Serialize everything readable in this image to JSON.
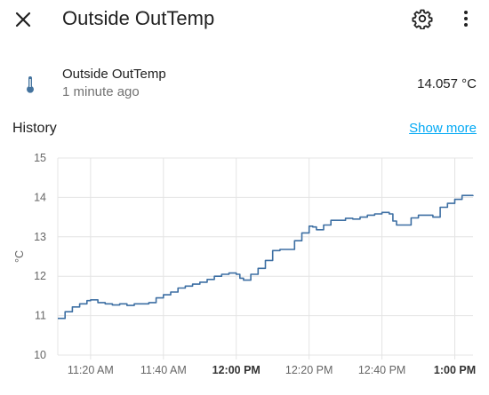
{
  "header": {
    "title": "Outside OutTemp"
  },
  "entity": {
    "name": "Outside OutTemp",
    "last_changed": "1 minute ago",
    "value": "14.057 °C"
  },
  "history": {
    "title": "History",
    "show_more": "Show more"
  },
  "colors": {
    "line": "#3d6fa3",
    "accent": "#03a9f4",
    "icon": "#44739e"
  },
  "chart_data": {
    "type": "line",
    "ylabel": "°C",
    "ylim": [
      10,
      15
    ],
    "yticks": [
      "15",
      "14",
      "13",
      "12",
      "11",
      "10"
    ],
    "xlim": [
      "11:11",
      "13:05"
    ],
    "xticks": [
      {
        "label": "11:20 AM",
        "time": "11:20",
        "bold": false
      },
      {
        "label": "11:40 AM",
        "time": "11:40",
        "bold": false
      },
      {
        "label": "12:00 PM",
        "time": "12:00",
        "bold": true
      },
      {
        "label": "12:20 PM",
        "time": "12:20",
        "bold": false
      },
      {
        "label": "12:40 PM",
        "time": "12:40",
        "bold": false
      },
      {
        "label": "1:00 PM",
        "time": "13:00",
        "bold": true
      }
    ],
    "grid": true,
    "series": [
      {
        "x": [
          "11:11",
          "11:13",
          "11:15",
          "11:17",
          "11:19",
          "11:20",
          "11:22",
          "11:24",
          "11:26",
          "11:28",
          "11:30",
          "11:32",
          "11:34",
          "11:36",
          "11:38",
          "11:40",
          "11:42",
          "11:44",
          "11:46",
          "11:48",
          "11:50",
          "11:52",
          "11:54",
          "11:56",
          "11:58",
          "12:00",
          "12:01",
          "12:02",
          "12:04",
          "12:06",
          "12:08",
          "12:10",
          "12:12",
          "12:14",
          "12:16",
          "12:18",
          "12:20",
          "12:21",
          "12:22",
          "12:24",
          "12:26",
          "12:28",
          "12:30",
          "12:32",
          "12:34",
          "12:36",
          "12:38",
          "12:40",
          "12:42",
          "12:43",
          "12:44",
          "12:46",
          "12:48",
          "12:50",
          "12:52",
          "12:54",
          "12:56",
          "12:58",
          "13:00",
          "13:02",
          "13:04",
          "13:05"
        ],
        "y": [
          10.93,
          11.1,
          11.22,
          11.3,
          11.38,
          11.4,
          11.33,
          11.3,
          11.27,
          11.3,
          11.26,
          11.3,
          11.3,
          11.33,
          11.45,
          11.53,
          11.6,
          11.7,
          11.75,
          11.8,
          11.85,
          11.92,
          12.0,
          12.05,
          12.08,
          12.05,
          11.95,
          11.9,
          12.05,
          12.2,
          12.4,
          12.65,
          12.68,
          12.68,
          12.9,
          13.1,
          13.27,
          13.25,
          13.18,
          13.3,
          13.42,
          13.42,
          13.47,
          13.45,
          13.5,
          13.55,
          13.58,
          13.62,
          13.58,
          13.4,
          13.3,
          13.3,
          13.48,
          13.55,
          13.55,
          13.5,
          13.75,
          13.85,
          13.95,
          14.05,
          14.05,
          14.06
        ]
      }
    ]
  }
}
